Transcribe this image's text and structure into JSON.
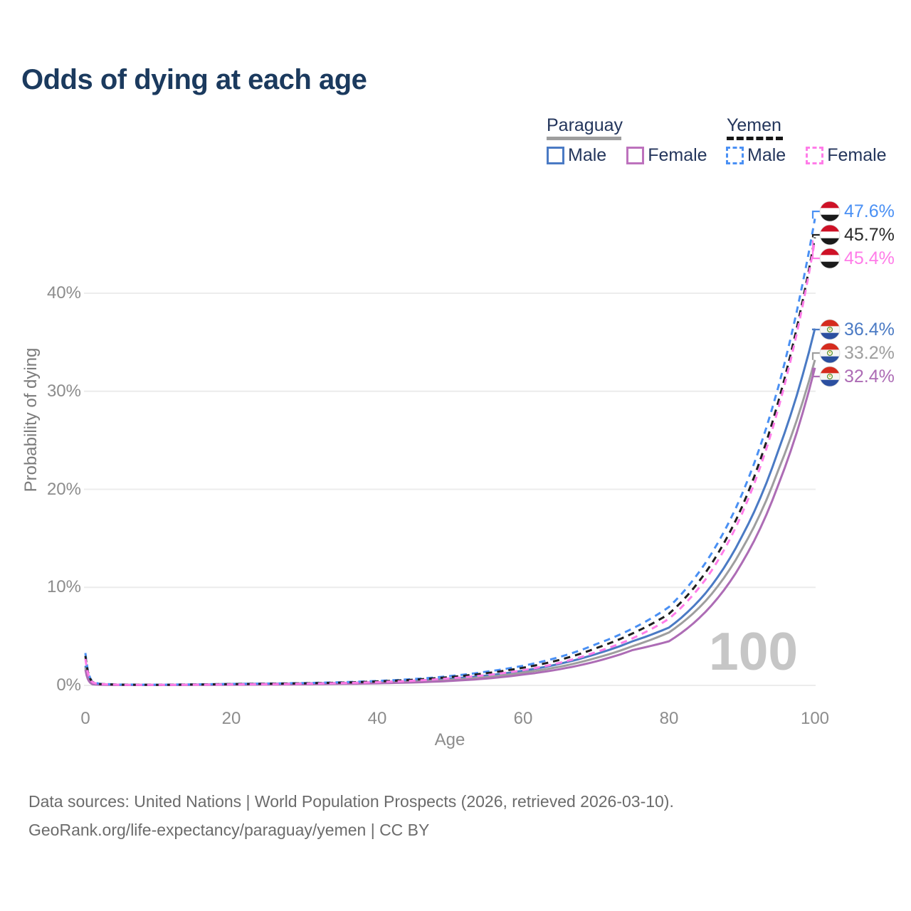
{
  "page": {
    "title": "Odds of dying at each age"
  },
  "legend": {
    "groups": [
      {
        "label": "Paraguay",
        "line_style": "solid",
        "underline_color": "#9e9e9e",
        "items": [
          {
            "label": "Male",
            "color": "#4a7ac4"
          },
          {
            "label": "Female",
            "color": "#bd72bd"
          }
        ]
      },
      {
        "label": "Yemen",
        "line_style": "dashed",
        "underline_color": "#161616",
        "items": [
          {
            "label": "Male",
            "color": "#4a90f4"
          },
          {
            "label": "Female",
            "color": "#ff7ce8"
          }
        ]
      }
    ]
  },
  "chart_data": {
    "type": "line",
    "title": "Odds of dying at each age",
    "xlabel": "Age",
    "ylabel": "Probability of dying",
    "xlim": [
      0,
      100
    ],
    "ylim": [
      0,
      48
    ],
    "grid": "horizontal",
    "x_tick_values": [
      0,
      20,
      40,
      60,
      80,
      100
    ],
    "x_tick_labels": [
      "0",
      "20",
      "40",
      "60",
      "80",
      "100"
    ],
    "y_tick_values": [
      0,
      10,
      20,
      30,
      40
    ],
    "y_tick_labels": [
      "0%",
      "10%",
      "20%",
      "30%",
      "40%"
    ],
    "watermark": "100",
    "ages": [
      0,
      1,
      2,
      5,
      10,
      15,
      20,
      25,
      30,
      35,
      40,
      45,
      50,
      55,
      60,
      65,
      70,
      75,
      80,
      85,
      90,
      95,
      100
    ],
    "series": [
      {
        "id": "paraguay-male",
        "name": "Paraguay Male",
        "country": "Paraguay",
        "sex": "male",
        "color": "#4a7ac4",
        "dashed": false,
        "values": [
          2.0,
          0.15,
          0.09,
          0.05,
          0.05,
          0.09,
          0.14,
          0.17,
          0.2,
          0.25,
          0.33,
          0.46,
          0.68,
          1.0,
          1.5,
          2.2,
          3.2,
          4.5,
          5.9,
          9.4,
          15.2,
          24.0,
          36.4
        ]
      },
      {
        "id": "paraguay-total",
        "name": "Paraguay Both sexes",
        "country": "Paraguay",
        "sex": "both",
        "color": "#9e9e9e",
        "dashed": false,
        "values": [
          1.8,
          0.13,
          0.08,
          0.045,
          0.04,
          0.07,
          0.11,
          0.14,
          0.16,
          0.2,
          0.27,
          0.38,
          0.56,
          0.85,
          1.3,
          1.9,
          2.8,
          4.0,
          5.4,
          8.6,
          13.9,
          22.0,
          33.2
        ]
      },
      {
        "id": "paraguay-female",
        "name": "Paraguay Female",
        "country": "Paraguay",
        "sex": "female",
        "color": "#ad6cb5",
        "dashed": false,
        "values": [
          1.6,
          0.11,
          0.07,
          0.04,
          0.035,
          0.05,
          0.07,
          0.09,
          0.11,
          0.15,
          0.21,
          0.3,
          0.45,
          0.7,
          1.1,
          1.65,
          2.45,
          3.6,
          4.5,
          7.5,
          12.5,
          20.5,
          32.4
        ]
      },
      {
        "id": "yemen-male",
        "name": "Yemen Male",
        "country": "Yemen",
        "sex": "male",
        "color": "#4a90f4",
        "dashed": true,
        "values": [
          3.3,
          0.35,
          0.16,
          0.08,
          0.07,
          0.1,
          0.15,
          0.19,
          0.24,
          0.32,
          0.45,
          0.65,
          0.95,
          1.4,
          2.0,
          2.9,
          4.2,
          5.8,
          8.0,
          12.5,
          19.5,
          30.5,
          47.6
        ]
      },
      {
        "id": "yemen-total",
        "name": "Yemen Both sexes",
        "country": "Yemen",
        "sex": "both",
        "color": "#1f1f1f",
        "dashed": true,
        "values": [
          3.0,
          0.32,
          0.14,
          0.07,
          0.06,
          0.09,
          0.13,
          0.17,
          0.21,
          0.28,
          0.4,
          0.58,
          0.85,
          1.25,
          1.8,
          2.6,
          3.8,
          5.3,
          7.3,
          11.5,
          18.2,
          29.0,
          45.7
        ]
      },
      {
        "id": "yemen-female",
        "name": "Yemen Female",
        "country": "Yemen",
        "sex": "female",
        "color": "#ff7ce8",
        "dashed": true,
        "values": [
          2.7,
          0.3,
          0.13,
          0.06,
          0.05,
          0.07,
          0.1,
          0.13,
          0.17,
          0.23,
          0.33,
          0.48,
          0.72,
          1.05,
          1.55,
          2.3,
          3.4,
          4.8,
          6.8,
          10.8,
          17.5,
          28.3,
          45.4
        ]
      }
    ],
    "annotations": [
      {
        "series": "yemen-male",
        "label": "47.6%",
        "flag": "yemen",
        "label_color": "#4a90f4"
      },
      {
        "series": "yemen-total",
        "label": "45.7%",
        "flag": "yemen",
        "label_color": "#2b2b2b"
      },
      {
        "series": "yemen-female",
        "label": "45.4%",
        "flag": "yemen",
        "label_color": "#ff7ce8"
      },
      {
        "series": "paraguay-male",
        "label": "36.4%",
        "flag": "paraguay",
        "label_color": "#4a7ac4"
      },
      {
        "series": "paraguay-total",
        "label": "33.2%",
        "flag": "paraguay",
        "label_color": "#9e9e9e"
      },
      {
        "series": "paraguay-female",
        "label": "32.4%",
        "flag": "paraguay",
        "label_color": "#ad6cb5"
      }
    ]
  },
  "footer": {
    "line1": "Data sources: United Nations | World Population Prospects (2026, retrieved 2026-03-10).",
    "line2": "GeoRank.org/life-expectancy/paraguay/yemen | CC BY"
  }
}
